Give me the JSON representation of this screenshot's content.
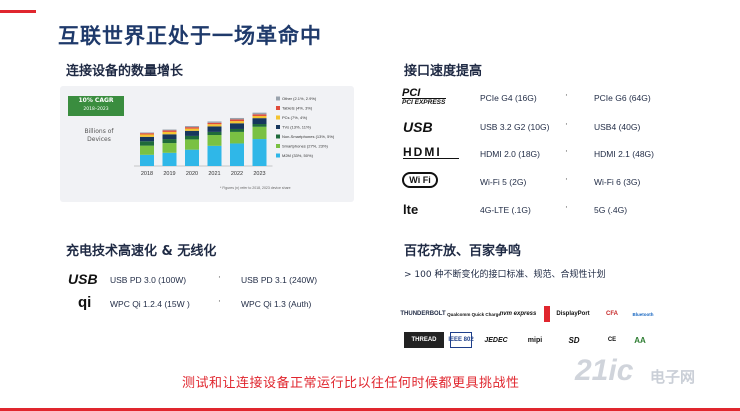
{
  "title": "互联世界正处于一场革命中",
  "growth": {
    "heading": "连接设备的数量增长",
    "cagr_line1": "10% CAGR",
    "cagr_line2": "2018–2023",
    "ylabel": "Billions of Devices",
    "footnote": "* Figures (n) refer to 2018, 2023 device share"
  },
  "chart_data": {
    "type": "bar",
    "stacked": true,
    "categories": [
      "2018",
      "2019",
      "2020",
      "2021",
      "2022",
      "2023"
    ],
    "series": [
      {
        "name": "M2M (33%, 50%)",
        "color": "#2fb7e8",
        "values": [
          6.1,
          7.2,
          8.9,
          11.0,
          12.3,
          14.7
        ]
      },
      {
        "name": "Smartphones (27%, 23%)",
        "color": "#7ac143",
        "values": [
          5.0,
          5.3,
          5.6,
          5.9,
          6.3,
          6.7
        ]
      },
      {
        "name": "Non-Smartphones (13%, 5%)",
        "color": "#1f6a3a",
        "values": [
          2.4,
          2.2,
          1.9,
          1.7,
          1.6,
          1.5
        ]
      },
      {
        "name": "TVs (13%, 11%)",
        "color": "#17365d",
        "values": [
          2.4,
          2.6,
          2.8,
          3.0,
          3.1,
          3.2
        ]
      },
      {
        "name": "PCs (7%, 4%)",
        "color": "#f4c430",
        "values": [
          1.3,
          1.3,
          1.2,
          1.2,
          1.2,
          1.2
        ]
      },
      {
        "name": "Tablets (4%, 3%)",
        "color": "#e04b3a",
        "values": [
          0.7,
          0.8,
          0.8,
          0.8,
          0.9,
          0.9
        ]
      },
      {
        "name": "Other (2.1%, 2.9%)",
        "color": "#9aa3ad",
        "values": [
          0.4,
          0.5,
          0.6,
          0.7,
          0.8,
          0.9
        ]
      }
    ]
  },
  "interfaces": {
    "heading": "接口速度提高",
    "rows": [
      {
        "logo": "PCI EXPRESS",
        "left": "PCIe G4 (16G)",
        "right": "PCIe G6 (64G)"
      },
      {
        "logo": "USB",
        "left": "USB 3.2 G2 (10G)",
        "right": "USB4 (40G)"
      },
      {
        "logo": "HDMI",
        "left": "HDMI 2.0 (18G)",
        "right": "HDMI 2.1 (48G)"
      },
      {
        "logo": "Wi Fi",
        "left": "Wi-Fi 5 (2G)",
        "right": "Wi-Fi 6 (3G)"
      },
      {
        "logo": "lte",
        "left": "4G-LTE (.1G)",
        "right": "5G (.4G)"
      }
    ],
    "separator": "·"
  },
  "charging": {
    "heading": "充电技术高速化 & 无线化",
    "rows": [
      {
        "logo": "USB",
        "left": "USB PD 3.0 (100W)",
        "right": "USB PD 3.1 (240W)"
      },
      {
        "logo": "qi",
        "left": "WPC Qi 1.2.4 (15W )",
        "right": "WPC Qi 1.3 (Auth)"
      }
    ]
  },
  "standards": {
    "heading": "百花齐放、百家争鸣",
    "description": "> 100 种不断变化的接口标准、规范、合规性计划",
    "brands_row1": [
      "THUNDERBOLT",
      "Qualcomm Quick Charge",
      "nvm express",
      "DisplayPort",
      "CFA",
      "Bluetooth"
    ],
    "brands_row2": [
      "THREAD",
      "IEEE 802",
      "JEDEC",
      "mipi",
      "SD",
      "CE",
      "AA"
    ]
  },
  "tagline": "测试和让连接设备正常运行比以往任何时候都更具挑战性",
  "watermark": {
    "brand": "21ic",
    "cn": "电子网"
  }
}
